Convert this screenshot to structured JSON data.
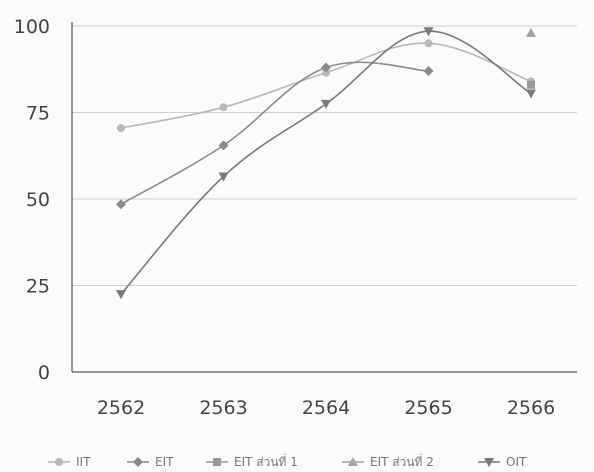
{
  "chart_data": {
    "type": "line",
    "title": "",
    "xlabel": "",
    "ylabel": "",
    "categories": [
      "2562",
      "2563",
      "2564",
      "2565",
      "2566"
    ],
    "ylim": [
      0,
      100
    ],
    "yticks": [
      0,
      25,
      50,
      75,
      100
    ],
    "grid": "horizontal",
    "legend_position": "bottom",
    "series": [
      {
        "name": "IIT",
        "values": [
          70.5,
          76.5,
          86.5,
          95,
          84
        ],
        "color": "#b8b8b8",
        "marker": "circle"
      },
      {
        "name": "EIT",
        "values": [
          48.5,
          65.5,
          88,
          87,
          null
        ],
        "color": "#8a8a8a",
        "marker": "diamond"
      },
      {
        "name": "EIT ส่วนที่ 1",
        "values": [
          null,
          null,
          null,
          null,
          83
        ],
        "color": "#999999",
        "marker": "square"
      },
      {
        "name": "EIT ส่วนที่ 2",
        "values": [
          null,
          null,
          null,
          null,
          98
        ],
        "color": "#a3a3a3",
        "marker": "triangle"
      },
      {
        "name": "OIT",
        "values": [
          22.5,
          56.5,
          77.5,
          98.5,
          80.5
        ],
        "color": "#7a7a7a",
        "marker": "triangle-down"
      }
    ]
  }
}
